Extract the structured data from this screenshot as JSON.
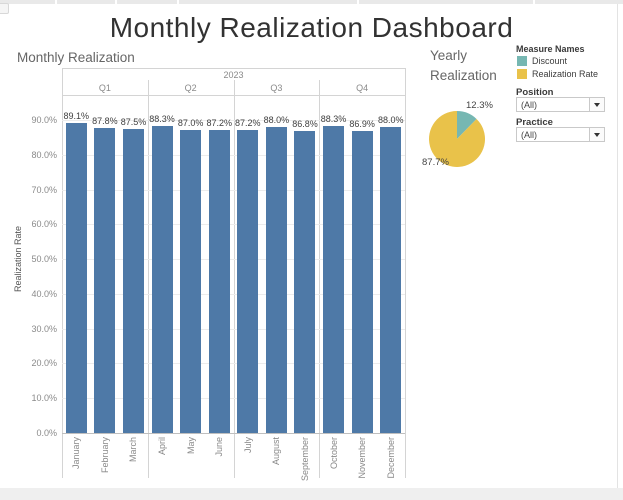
{
  "dashboard": {
    "title": "Monthly Realization Dashboard"
  },
  "bar_chart": {
    "title": "Monthly Realization",
    "year_label": "2023",
    "quarter_labels": [
      "Q1",
      "Q2",
      "Q3",
      "Q4"
    ],
    "y_axis_title": "Realization Rate",
    "y_tick_labels": [
      "90.0%",
      "80.0%",
      "70.0%",
      "60.0%",
      "50.0%",
      "40.0%",
      "30.0%",
      "20.0%",
      "10.0%",
      "0.0%"
    ],
    "months": [
      "January",
      "February",
      "March",
      "April",
      "May",
      "June",
      "July",
      "August",
      "September",
      "October",
      "November",
      "December"
    ],
    "values_pct": [
      89.1,
      87.8,
      87.5,
      88.3,
      87.0,
      87.2,
      87.2,
      88.0,
      86.8,
      88.3,
      86.9,
      88.0
    ],
    "bar_labels": [
      "89.1%",
      "87.8%",
      "87.5%",
      "88.3%",
      "87.0%",
      "87.2%",
      "87.2%",
      "88.0%",
      "86.8%",
      "88.3%",
      "86.9%",
      "88.0%"
    ]
  },
  "pie_chart": {
    "title": "Yearly Realization",
    "slices": [
      {
        "name": "Discount",
        "label": "12.3%",
        "value_pct": 12.3,
        "color": "#76b7b2"
      },
      {
        "name": "Realization Rate",
        "label": "87.7%",
        "value_pct": 87.7,
        "color": "#e9c24a"
      }
    ]
  },
  "legend": {
    "title": "Measure Names",
    "items": [
      {
        "label": "Discount",
        "color": "#76b7b2"
      },
      {
        "label": "Realization Rate",
        "color": "#e9c24a"
      }
    ]
  },
  "filters": [
    {
      "label": "Position",
      "value": "(All)"
    },
    {
      "label": "Practice",
      "value": "(All)"
    }
  ],
  "colors": {
    "bar": "#4e79a7",
    "discount_teal": "#76b7b2",
    "realization_yellow": "#e9c24a"
  },
  "chart_data": [
    {
      "type": "bar",
      "title": "Monthly Realization",
      "categories": [
        "January",
        "February",
        "March",
        "April",
        "May",
        "June",
        "July",
        "August",
        "September",
        "October",
        "November",
        "December"
      ],
      "values": [
        89.1,
        87.8,
        87.5,
        88.3,
        87.0,
        87.2,
        87.2,
        88.0,
        86.8,
        88.3,
        86.9,
        88.0
      ],
      "data_labels": [
        "89.1%",
        "87.8%",
        "87.5%",
        "88.3%",
        "87.0%",
        "87.2%",
        "87.2%",
        "88.0%",
        "86.8%",
        "88.3%",
        "86.9%",
        "88.0%"
      ],
      "xlabel": "",
      "ylabel": "Realization Rate",
      "ylim": [
        0,
        97
      ],
      "y_tick_step": 10,
      "grid": true,
      "bar_color": "#4e79a7",
      "x_hierarchy": {
        "year": "2023",
        "quarters": {
          "Q1": [
            "January",
            "February",
            "March"
          ],
          "Q2": [
            "April",
            "May",
            "June"
          ],
          "Q3": [
            "July",
            "August",
            "September"
          ],
          "Q4": [
            "October",
            "November",
            "December"
          ]
        }
      }
    },
    {
      "type": "pie",
      "title": "Yearly Realization",
      "labels": [
        "Discount",
        "Realization Rate"
      ],
      "values": [
        12.3,
        87.7
      ],
      "slice_labels": [
        "12.3%",
        "87.7%"
      ],
      "colors": [
        "#76b7b2",
        "#e9c24a"
      ],
      "legend_title": "Measure Names",
      "legend_position": "top-right"
    }
  ]
}
